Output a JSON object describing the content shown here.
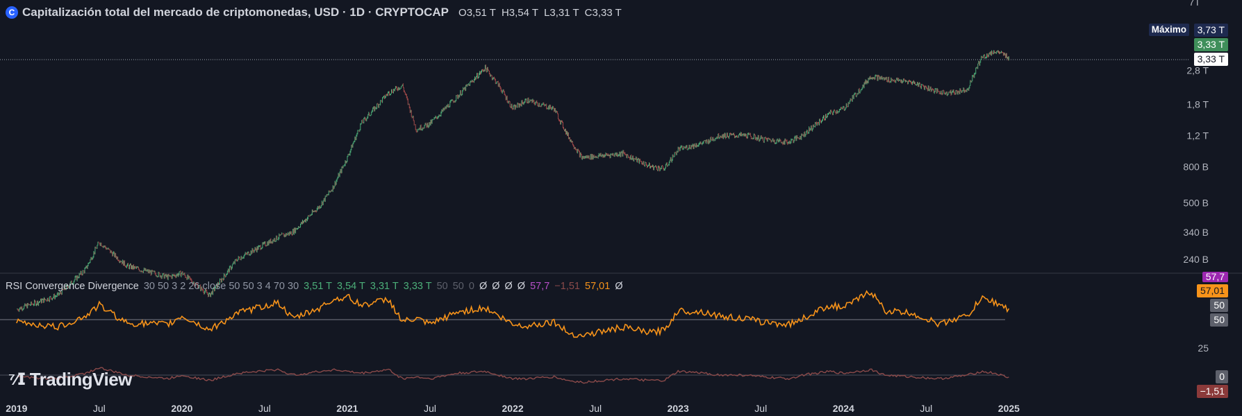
{
  "header": {
    "title": "Capitalización total del mercado de criptomonedas, USD · 1D · CRYPTOCAP",
    "ohlc": [
      {
        "k": "O",
        "v": "3,51 T"
      },
      {
        "k": "H",
        "v": "3,54 T"
      },
      {
        "k": "L",
        "v": "3,31 T"
      },
      {
        "k": "C",
        "v": "3,33 T"
      }
    ]
  },
  "indicator": {
    "name": "RSI Convergence Divergence",
    "params": "30 50 3 2 26 close 50 50 3 4 70 30",
    "values": [
      {
        "t": "3,51 T",
        "c": "g"
      },
      {
        "t": "3,54 T",
        "c": "g"
      },
      {
        "t": "3,31 T",
        "c": "g"
      },
      {
        "t": "3,33 T",
        "c": "g"
      },
      {
        "t": "50",
        "c": "gr"
      },
      {
        "t": "50",
        "c": "gr"
      },
      {
        "t": "0",
        "c": "gr"
      },
      {
        "t": "Ø",
        "c": "w"
      },
      {
        "t": "Ø",
        "c": "w"
      },
      {
        "t": "Ø",
        "c": "w"
      },
      {
        "t": "Ø",
        "c": "w"
      },
      {
        "t": "57,7",
        "c": "p"
      },
      {
        "t": "−1,51",
        "c": "r"
      },
      {
        "t": "57,01",
        "c": "o"
      },
      {
        "t": "Ø",
        "c": "w"
      }
    ]
  },
  "branding": {
    "logo_text": "TradingView"
  },
  "price_axis": {
    "top_partial_label": "7T",
    "labels": [
      "2,8 T",
      "1,8 T",
      "1,2 T",
      "800 B",
      "500 B",
      "340 B",
      "240 B"
    ],
    "badges": {
      "max_label": "Máximo",
      "max_value": "3,73 T",
      "last_green": "3,33 T",
      "last_white": "3,33 T"
    }
  },
  "rsi_axis": {
    "labels": [
      "25"
    ],
    "badges": [
      "57,7",
      "57,01",
      "50",
      "50",
      "0",
      "−1,51"
    ]
  },
  "time_axis": {
    "labels": [
      "2019",
      "Jul",
      "2020",
      "Jul",
      "2021",
      "Jul",
      "2022",
      "Jul",
      "2023",
      "Jul",
      "2024",
      "Jul",
      "2025"
    ],
    "bold": [
      true,
      false,
      true,
      false,
      true,
      false,
      true,
      false,
      true,
      false,
      true,
      false,
      true
    ]
  },
  "colors": {
    "background": "#131722",
    "up": "#4caf79",
    "down": "#a44a4a",
    "rsi_line": "#f7931a",
    "macd_line": "#8b4a4a",
    "max_badge_bg": "#1e2a4f",
    "last_badge_bg": "#3f8f5a"
  },
  "chart_data": {
    "type": "line",
    "title": "Capitalización total del mercado de criptomonedas, USD · 1D · CRYPTOCAP",
    "x": [
      "2019-01",
      "2019-04",
      "2019-06",
      "2019-07",
      "2019-09",
      "2019-12",
      "2020-01",
      "2020-03",
      "2020-05",
      "2020-08",
      "2020-09",
      "2020-11",
      "2020-12",
      "2021-01",
      "2021-02",
      "2021-04",
      "2021-05",
      "2021-06",
      "2021-07",
      "2021-09",
      "2021-11",
      "2021-12",
      "2022-01",
      "2022-02",
      "2022-04",
      "2022-05",
      "2022-06",
      "2022-09",
      "2022-11",
      "2022-12",
      "2023-01",
      "2023-03",
      "2023-04",
      "2023-06",
      "2023-07",
      "2023-09",
      "2023-10",
      "2023-12",
      "2024-01",
      "2024-03",
      "2024-04",
      "2024-06",
      "2024-08",
      "2024-09",
      "2024-10",
      "2024-11",
      "2024-12",
      "2025-01"
    ],
    "series": [
      {
        "values": [
          125,
          150,
          210,
          300,
          220,
          190,
          200,
          150,
          240,
          320,
          340,
          480,
          620,
          900,
          1400,
          2100,
          2300,
          1300,
          1400,
          2000,
          2900,
          2300,
          1700,
          1900,
          1700,
          1200,
          900,
          950,
          800,
          780,
          1000,
          1100,
          1200,
          1200,
          1150,
          1100,
          1200,
          1600,
          1700,
          2600,
          2500,
          2400,
          2100,
          2100,
          2200,
          3300,
          3600,
          3330
        ]
      }
    ],
    "ylim": [
      200,
      7000
    ],
    "log_scale": true,
    "rsi_series": {
      "values": [
        48,
        44,
        52,
        60,
        47,
        46,
        52,
        42,
        54,
        62,
        50,
        58,
        64,
        66,
        60,
        64,
        48,
        50,
        46,
        55,
        58,
        52,
        46,
        45,
        48,
        40,
        38,
        44,
        40,
        42,
        56,
        55,
        52,
        50,
        48,
        46,
        50,
        60,
        58,
        70,
        56,
        54,
        46,
        50,
        52,
        65,
        62,
        57
      ],
      "reference": 50,
      "last": 57.01
    },
    "macd_series": {
      "values": [
        -1,
        -2,
        1,
        4,
        0,
        -2,
        0,
        -3,
        1,
        3,
        0,
        2,
        3,
        2,
        1,
        3,
        -2,
        -1,
        -2,
        1,
        2,
        0,
        -2,
        -2,
        -1,
        -3,
        -4,
        -2,
        -3,
        -3,
        2,
        1,
        0,
        0,
        -1,
        -2,
        0,
        2,
        1,
        3,
        0,
        -1,
        -2,
        -1,
        0,
        2,
        1,
        -1.51
      ],
      "reference": 0,
      "last": -1.51
    }
  }
}
